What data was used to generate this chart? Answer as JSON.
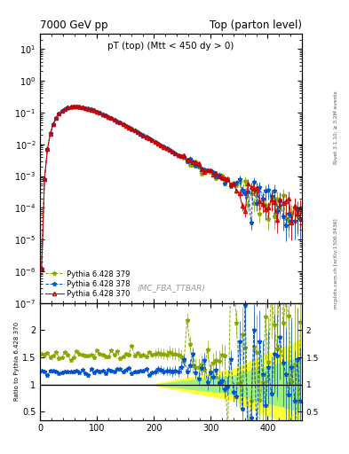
{
  "title_left": "7000 GeV pp",
  "title_right": "Top (parton level)",
  "plot_title": "pT (top) (Mtt < 450 dy > 0)",
  "watermark": "(MC_FBA_TTBAR)",
  "right_label_top": "Rivet 3.1.10; ≥ 3.2M events",
  "right_label_bot": "mcplots.cern.ch [arXiv:1306.3436]",
  "ylabel_ratio": "Ratio to Pythia 6.428 370",
  "ylim_main": [
    1e-07,
    30
  ],
  "ylim_ratio": [
    0.35,
    2.5
  ],
  "xlim": [
    0,
    460
  ],
  "xticks": [
    0,
    100,
    200,
    300,
    400
  ],
  "color_370": "#cc0000",
  "color_378": "#0055cc",
  "color_379": "#88aa00",
  "label_370": "Pythia 6.428 370",
  "label_378": "Pythia 6.428 378",
  "label_379": "Pythia 6.428 379",
  "ratio_378_base": 1.25,
  "ratio_379_base": 1.55
}
